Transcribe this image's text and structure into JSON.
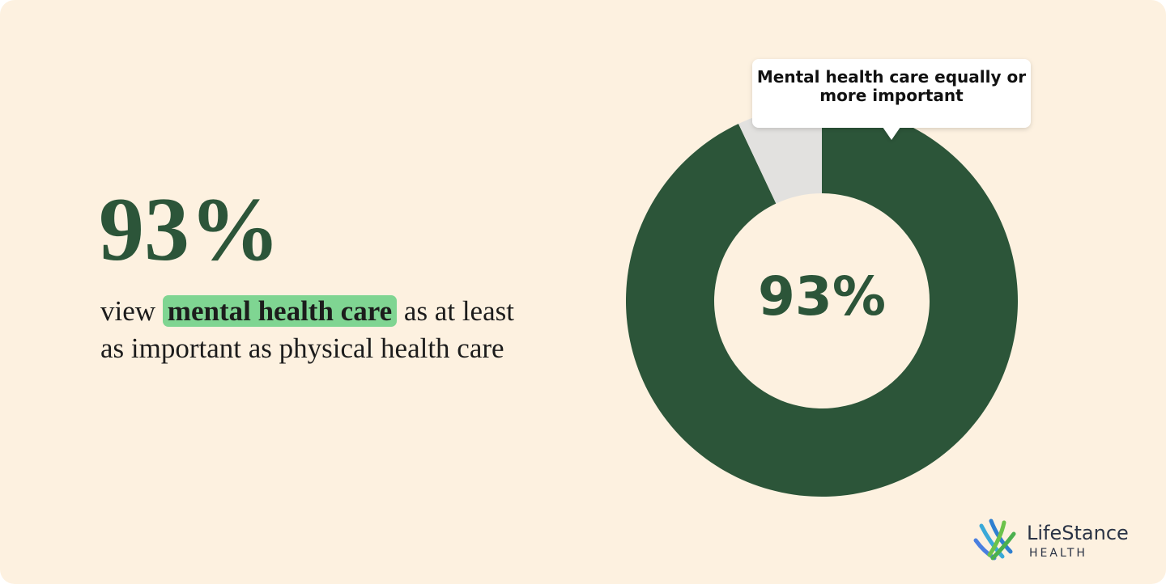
{
  "headline": {
    "stat": "93%",
    "text_before": "view",
    "highlight": "mental health care",
    "text_after": "as at least as important as physical health care"
  },
  "chart_data": {
    "type": "donut",
    "categories": [
      "Mental health care equally or more important",
      null
    ],
    "values": [
      93,
      7
    ],
    "value_labels": [
      "93%",
      null
    ],
    "colors": [
      "#2c5539",
      "#e2e1df"
    ]
  },
  "logo": {
    "name": "LifeStance",
    "sub": "HEALTH"
  }
}
